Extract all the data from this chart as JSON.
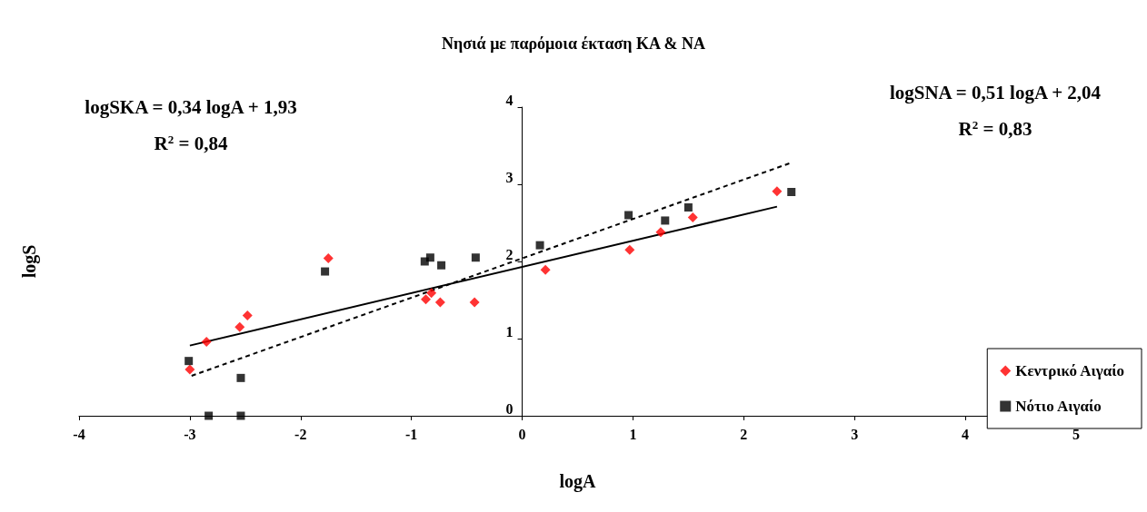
{
  "chart_data": {
    "type": "scatter",
    "title": "Νησιά με παρόμοια έκταση ΚΑ & ΝΑ",
    "xlabel": "logA",
    "ylabel": "logS",
    "xlim": [
      -4,
      5
    ],
    "xticks": [
      -4,
      -3,
      -2,
      -1,
      0,
      1,
      2,
      3,
      4,
      5
    ],
    "ylim": [
      0,
      4
    ],
    "yticks": [
      0,
      1,
      2,
      3,
      4
    ],
    "grid": false,
    "legend": "bottom right",
    "annotations": [
      "logSKA = 0,34 logA + 1,93",
      "R$^{2}$ = 0,84",
      "logSNA = 0,51 logA + 2,04",
      "R$^{2}$ = 0,83"
    ],
    "series": [
      {
        "name": "Κεντρικό Αιγαίο",
        "color": "#ff0000",
        "marker": "diamond",
        "x": [
          -3.0,
          -2.85,
          -2.55,
          -2.48,
          -1.75,
          -0.87,
          -0.82,
          -0.74,
          -0.43,
          0.21,
          0.97,
          1.25,
          1.54,
          2.3
        ],
        "values": [
          0.6,
          0.96,
          1.15,
          1.3,
          2.04,
          1.51,
          1.59,
          1.47,
          1.47,
          1.89,
          2.15,
          2.38,
          2.57,
          2.91
        ]
      },
      {
        "name": "Νότιο Αιγαίο",
        "color": "#000000",
        "marker": "square",
        "x": [
          -3.01,
          -2.83,
          -2.54,
          -2.54,
          -1.78,
          -0.88,
          -0.83,
          -0.73,
          -0.42,
          0.16,
          0.96,
          1.29,
          1.5,
          2.43
        ],
        "values": [
          0.71,
          0,
          0.49,
          0,
          1.87,
          2.0,
          2.05,
          1.95,
          2.05,
          2.21,
          2.6,
          2.53,
          2.7,
          2.9
        ]
      },
      {
        "type": "line",
        "color": "#000000",
        "marker": "none",
        "line_style": "solid",
        "x": [
          -3.0,
          2.3
        ],
        "values": [
          0.91,
          2.71
        ]
      },
      {
        "type": "line",
        "color": "#000000",
        "marker": "none",
        "line_style": "dashed",
        "x": [
          -3.0,
          2.43
        ],
        "values": [
          0.51,
          3.28
        ]
      }
    ]
  }
}
